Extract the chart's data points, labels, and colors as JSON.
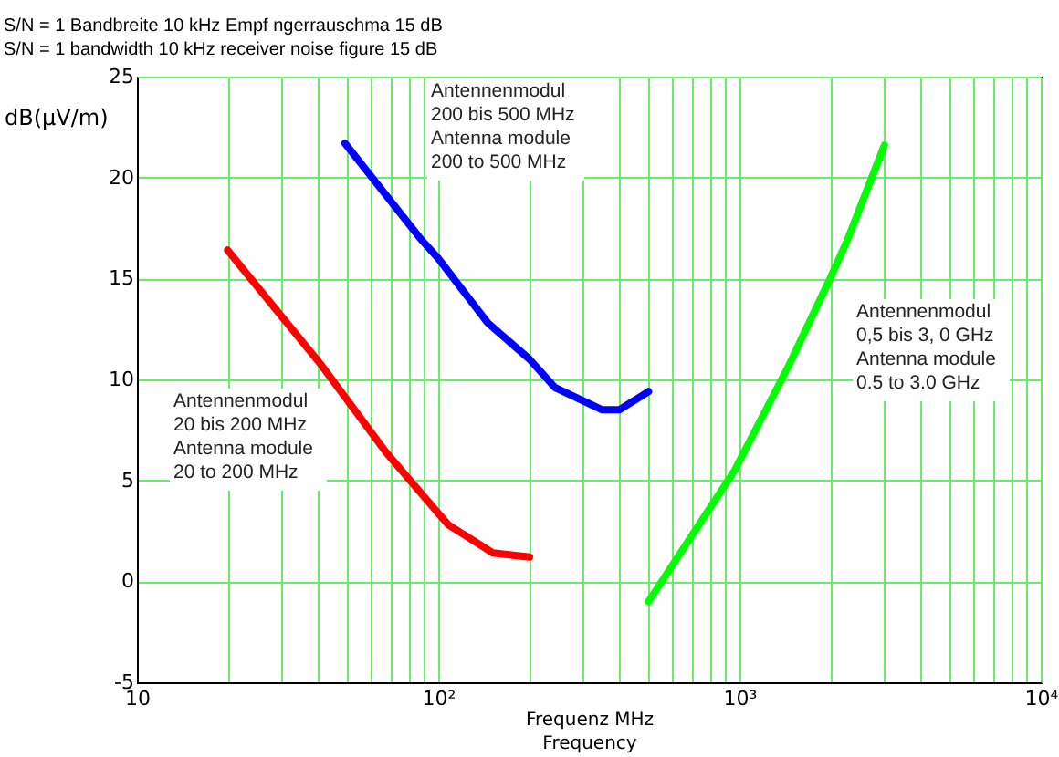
{
  "chart_data": {
    "type": "line",
    "title": [
      "S/N = 1 Bandbreite 10 kHz Empf ngerrauschma  15 dB",
      "S/N = 1 bandwidth 10 kHz receiver noise figure 15 dB"
    ],
    "xlabel": "Frequenz MHz\nFrequency",
    "ylabel": "dB(μV/m)",
    "log": "x",
    "xlim": [
      10,
      10000
    ],
    "ylim": [
      -5,
      25
    ],
    "xticks": [
      {
        "value": 10,
        "label": "10"
      },
      {
        "value": 20,
        "label": null
      },
      {
        "value": 30,
        "label": null
      },
      {
        "value": 40,
        "label": null
      },
      {
        "value": 50,
        "label": null
      },
      {
        "value": 60,
        "label": null
      },
      {
        "value": 70,
        "label": null
      },
      {
        "value": 80,
        "label": null
      },
      {
        "value": 90,
        "label": null
      },
      {
        "value": 100,
        "label": "10²"
      },
      {
        "value": 200,
        "label": null
      },
      {
        "value": 300,
        "label": null
      },
      {
        "value": 400,
        "label": null
      },
      {
        "value": 500,
        "label": null
      },
      {
        "value": 600,
        "label": null
      },
      {
        "value": 700,
        "label": null
      },
      {
        "value": 800,
        "label": null
      },
      {
        "value": 900,
        "label": null
      },
      {
        "value": 1000,
        "label": "10³"
      },
      {
        "value": 2000,
        "label": null
      },
      {
        "value": 3000,
        "label": null
      },
      {
        "value": 4000,
        "label": null
      },
      {
        "value": 5000,
        "label": null
      },
      {
        "value": 6000,
        "label": null
      },
      {
        "value": 7000,
        "label": null
      },
      {
        "value": 8000,
        "label": null
      },
      {
        "value": 9000,
        "label": null
      },
      {
        "value": 10000,
        "label": "10⁴"
      }
    ],
    "yticks": [
      -5,
      0,
      5,
      10,
      15,
      20,
      25
    ],
    "grid": true,
    "marker": "none",
    "line_style": "solid",
    "series": [
      {
        "color": "#ff0000",
        "x": [
          20,
          41,
          67,
          101,
          108,
          152,
          201
        ],
        "values": [
          16.4,
          10.7,
          6.4,
          3.3,
          2.8,
          1.4,
          1.2
        ]
      },
      {
        "color": "#0000ff",
        "x": [
          49,
          87,
          100,
          146,
          201,
          244,
          349,
          400,
          499
        ],
        "values": [
          21.7,
          17.0,
          16.0,
          12.8,
          11.0,
          9.6,
          8.5,
          8.5,
          9.4
        ]
      },
      {
        "color": "#00ff00",
        "x": [
          499,
          520,
          964,
          1459,
          2000,
          2296,
          3027
        ],
        "values": [
          -1.0,
          -0.6,
          5.5,
          10.7,
          15.0,
          17.0,
          21.6
        ]
      }
    ],
    "annotations": [
      "Antennenmodul\n20 bis 200 MHz\nAntenna module\n20 to 200 MHz",
      "Antennenmodul\n200 bis 500 MHz\nAntenna module\n200 to 500 MHz",
      "Antennenmodul\n0,5 bis 3, 0 GHz\nAntenna module\n0.5 to 3.0 GHz"
    ]
  }
}
